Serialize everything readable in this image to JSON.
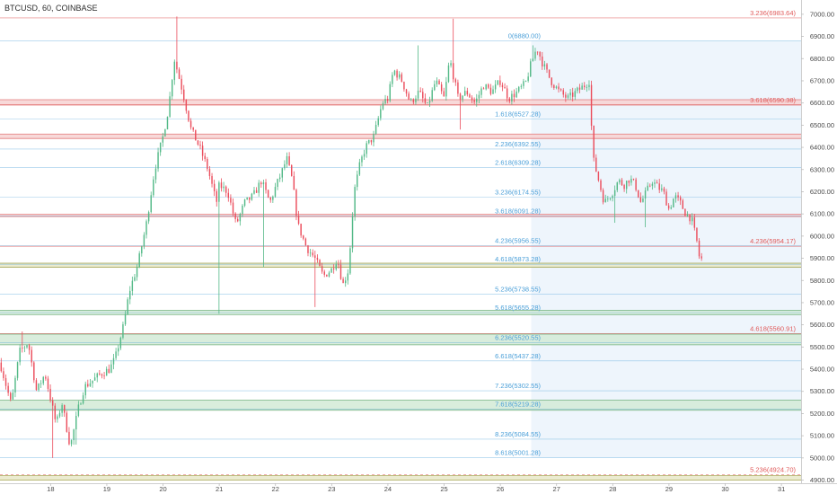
{
  "chart_data": {
    "type": "candlestick",
    "title": "BTCUSD, 60, COINBASE",
    "symbol": "BTCUSD",
    "interval": "60",
    "exchange": "COINBASE",
    "x_tick_labels": [
      "18",
      "19",
      "20",
      "21",
      "22",
      "23",
      "24",
      "25",
      "26",
      "27",
      "28",
      "29",
      "30",
      "31"
    ],
    "y_tick_labels": [
      "7000.00",
      "6900.00",
      "6800.00",
      "6700.00",
      "6600.00",
      "6500.00",
      "6400.00",
      "6300.00",
      "6200.00",
      "6100.00",
      "6000.00",
      "5900.00",
      "5800.00",
      "5700.00",
      "5600.00",
      "5500.00",
      "5400.00",
      "5300.00",
      "5200.00",
      "5100.00",
      "5000.00",
      "4900.00"
    ],
    "ylim": [
      4890,
      7040
    ],
    "xlim": [
      17.1,
      31.35
    ],
    "colors": {
      "up": "#53b987",
      "down": "#eb4d5c",
      "fib_blue": "#4a9fd8",
      "level_red": "#e05a5a",
      "zone_green": "#d2ead6",
      "zone_green_border": "#6fb07a",
      "zone_red": "#f7d2d2",
      "zone_red_border": "#e27a7a",
      "zone_blue": "#eef5fc",
      "zone_olive": "#e7e7c8",
      "zone_olive_border": "#a6a654"
    },
    "fib_labels": [
      {
        "text": "0(6880.00)",
        "value": 6880.0
      },
      {
        "text": "1.618(6527.28)",
        "value": 6527.28
      },
      {
        "text": "2.236(6392.55)",
        "value": 6392.55
      },
      {
        "text": "2.618(6309.28)",
        "value": 6309.28
      },
      {
        "text": "3.236(6174.55)",
        "value": 6174.55
      },
      {
        "text": "3.618(6091.28)",
        "value": 6091.28
      },
      {
        "text": "4.236(5956.55)",
        "value": 5956.55
      },
      {
        "text": "4.618(5873.28)",
        "value": 5873.28
      },
      {
        "text": "5.236(5738.55)",
        "value": 5738.55
      },
      {
        "text": "5.618(5655.28)",
        "value": 5655.28
      },
      {
        "text": "6.236(5520.55)",
        "value": 5520.55
      },
      {
        "text": "6.618(5437.28)",
        "value": 5437.28
      },
      {
        "text": "7.236(5302.55)",
        "value": 5302.55
      },
      {
        "text": "7.618(5219.28)",
        "value": 5219.28
      },
      {
        "text": "8.236(5084.55)",
        "value": 5084.55
      },
      {
        "text": "8.618(5001.28)",
        "value": 5001.28
      }
    ],
    "level_labels": [
      {
        "text": "3.236(6983.64)",
        "value": 6983.64
      },
      {
        "text": "3.618(6590.38)",
        "value": 6590.38
      },
      {
        "text": "4.236(5954.17)",
        "value": 5954.17
      },
      {
        "text": "4.618(5560.91)",
        "value": 5560.91
      },
      {
        "text": "5.236(4924.70)",
        "value": 4924.7
      }
    ],
    "zones": [
      {
        "kind": "red",
        "from": 6592,
        "to": 6615
      },
      {
        "kind": "red",
        "from": 6440,
        "to": 6460
      },
      {
        "kind": "red",
        "from": 6088,
        "to": 6098
      },
      {
        "kind": "olive",
        "from": 5860,
        "to": 5878
      },
      {
        "kind": "green",
        "from": 5646,
        "to": 5665
      },
      {
        "kind": "green",
        "from": 5510,
        "to": 5558
      },
      {
        "kind": "green",
        "from": 5215,
        "to": 5260
      },
      {
        "kind": "olive",
        "from": 4900,
        "to": 4920
      }
    ],
    "waypoints": [
      [
        17.1,
        5430
      ],
      [
        17.3,
        5240
      ],
      [
        17.45,
        5480
      ],
      [
        17.6,
        5520
      ],
      [
        17.75,
        5300
      ],
      [
        17.9,
        5380
      ],
      [
        18.1,
        5150
      ],
      [
        18.2,
        5250
      ],
      [
        18.35,
        5050
      ],
      [
        18.5,
        5230
      ],
      [
        18.6,
        5320
      ],
      [
        18.75,
        5350
      ],
      [
        18.9,
        5380
      ],
      [
        19.05,
        5400
      ],
      [
        19.15,
        5450
      ],
      [
        19.3,
        5600
      ],
      [
        19.4,
        5750
      ],
      [
        19.55,
        5870
      ],
      [
        19.7,
        6050
      ],
      [
        19.85,
        6300
      ],
      [
        20.0,
        6450
      ],
      [
        20.1,
        6580
      ],
      [
        20.2,
        6800
      ],
      [
        20.35,
        6650
      ],
      [
        20.5,
        6480
      ],
      [
        20.65,
        6400
      ],
      [
        20.8,
        6300
      ],
      [
        20.95,
        6150
      ],
      [
        21.0,
        6230
      ],
      [
        21.15,
        6200
      ],
      [
        21.3,
        6050
      ],
      [
        21.45,
        6150
      ],
      [
        21.6,
        6180
      ],
      [
        21.75,
        6250
      ],
      [
        21.9,
        6150
      ],
      [
        22.0,
        6220
      ],
      [
        22.1,
        6280
      ],
      [
        22.2,
        6350
      ],
      [
        22.3,
        6250
      ],
      [
        22.4,
        6050
      ],
      [
        22.55,
        5950
      ],
      [
        22.7,
        5900
      ],
      [
        22.85,
        5820
      ],
      [
        23.0,
        5850
      ],
      [
        23.1,
        5900
      ],
      [
        23.2,
        5780
      ],
      [
        23.3,
        5850
      ],
      [
        23.4,
        6200
      ],
      [
        23.5,
        6320
      ],
      [
        23.6,
        6400
      ],
      [
        23.75,
        6450
      ],
      [
        23.9,
        6600
      ],
      [
        24.0,
        6620
      ],
      [
        24.1,
        6750
      ],
      [
        24.25,
        6700
      ],
      [
        24.4,
        6600
      ],
      [
        24.55,
        6650
      ],
      [
        24.7,
        6580
      ],
      [
        24.85,
        6700
      ],
      [
        25.0,
        6620
      ],
      [
        25.1,
        6800
      ],
      [
        25.25,
        6620
      ],
      [
        25.4,
        6650
      ],
      [
        25.55,
        6600
      ],
      [
        25.7,
        6680
      ],
      [
        25.85,
        6650
      ],
      [
        26.0,
        6700
      ],
      [
        26.15,
        6620
      ],
      [
        26.3,
        6650
      ],
      [
        26.45,
        6690
      ],
      [
        26.55,
        6780
      ],
      [
        26.65,
        6850
      ],
      [
        26.75,
        6780
      ],
      [
        26.9,
        6700
      ],
      [
        27.05,
        6650
      ],
      [
        27.2,
        6620
      ],
      [
        27.35,
        6650
      ],
      [
        27.5,
        6680
      ],
      [
        27.58,
        6700
      ],
      [
        27.65,
        6350
      ],
      [
        27.75,
        6250
      ],
      [
        27.85,
        6150
      ],
      [
        28.0,
        6200
      ],
      [
        28.1,
        6250
      ],
      [
        28.2,
        6230
      ],
      [
        28.3,
        6260
      ],
      [
        28.4,
        6230
      ],
      [
        28.5,
        6150
      ],
      [
        28.6,
        6200
      ],
      [
        28.7,
        6250
      ],
      [
        28.8,
        6220
      ],
      [
        28.9,
        6200
      ],
      [
        29.0,
        6120
      ],
      [
        29.1,
        6180
      ],
      [
        29.2,
        6150
      ],
      [
        29.3,
        6100
      ],
      [
        29.4,
        6080
      ],
      [
        29.5,
        5970
      ],
      [
        29.55,
        5890
      ],
      [
        29.6,
        5900
      ]
    ],
    "spikes": [
      [
        17.5,
        5570,
        "high"
      ],
      [
        18.05,
        5000,
        "low"
      ],
      [
        18.45,
        5060,
        "low"
      ],
      [
        20.25,
        6990,
        "high"
      ],
      [
        21.0,
        5650,
        "low"
      ],
      [
        21.8,
        5860,
        "low"
      ],
      [
        22.7,
        5680,
        "low"
      ],
      [
        24.55,
        6860,
        "high"
      ],
      [
        25.15,
        6980,
        "high"
      ],
      [
        25.3,
        6480,
        "low"
      ],
      [
        26.6,
        6860,
        "high"
      ],
      [
        28.05,
        6060,
        "low"
      ],
      [
        28.6,
        6040,
        "low"
      ]
    ],
    "grid": false,
    "legend": "none"
  }
}
